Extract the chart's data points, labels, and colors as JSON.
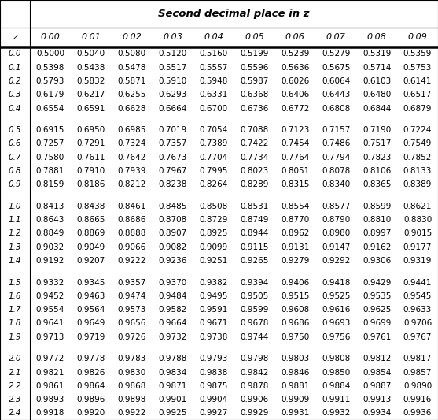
{
  "title": "Second decimal place in z",
  "col_header": [
    "0.00",
    "0.01",
    "0.02",
    "0.03",
    "0.04",
    "0.05",
    "0.06",
    "0.07",
    "0.08",
    "0.09"
  ],
  "z_labels": [
    "0.0",
    "0.1",
    "0.2",
    "0.3",
    "0.4",
    "",
    "0.5",
    "0.6",
    "0.7",
    "0.8",
    "0.9",
    "",
    "1.0",
    "1.1",
    "1.2",
    "1.3",
    "1.4",
    "",
    "1.5",
    "1.6",
    "1.7",
    "1.8",
    "1.9",
    "",
    "2.0",
    "2.1",
    "2.2",
    "2.3",
    "2.4"
  ],
  "table_data": [
    [
      "0.5000",
      "0.5040",
      "0.5080",
      "0.5120",
      "0.5160",
      "0.5199",
      "0.5239",
      "0.5279",
      "0.5319",
      "0.5359"
    ],
    [
      "0.5398",
      "0.5438",
      "0.5478",
      "0.5517",
      "0.5557",
      "0.5596",
      "0.5636",
      "0.5675",
      "0.5714",
      "0.5753"
    ],
    [
      "0.5793",
      "0.5832",
      "0.5871",
      "0.5910",
      "0.5948",
      "0.5987",
      "0.6026",
      "0.6064",
      "0.6103",
      "0.6141"
    ],
    [
      "0.6179",
      "0.6217",
      "0.6255",
      "0.6293",
      "0.6331",
      "0.6368",
      "0.6406",
      "0.6443",
      "0.6480",
      "0.6517"
    ],
    [
      "0.6554",
      "0.6591",
      "0.6628",
      "0.6664",
      "0.6700",
      "0.6736",
      "0.6772",
      "0.6808",
      "0.6844",
      "0.6879"
    ],
    null,
    [
      "0.6915",
      "0.6950",
      "0.6985",
      "0.7019",
      "0.7054",
      "0.7088",
      "0.7123",
      "0.7157",
      "0.7190",
      "0.7224"
    ],
    [
      "0.7257",
      "0.7291",
      "0.7324",
      "0.7357",
      "0.7389",
      "0.7422",
      "0.7454",
      "0.7486",
      "0.7517",
      "0.7549"
    ],
    [
      "0.7580",
      "0.7611",
      "0.7642",
      "0.7673",
      "0.7704",
      "0.7734",
      "0.7764",
      "0.7794",
      "0.7823",
      "0.7852"
    ],
    [
      "0.7881",
      "0.7910",
      "0.7939",
      "0.7967",
      "0.7995",
      "0.8023",
      "0.8051",
      "0.8078",
      "0.8106",
      "0.8133"
    ],
    [
      "0.8159",
      "0.8186",
      "0.8212",
      "0.8238",
      "0.8264",
      "0.8289",
      "0.8315",
      "0.8340",
      "0.8365",
      "0.8389"
    ],
    null,
    [
      "0.8413",
      "0.8438",
      "0.8461",
      "0.8485",
      "0.8508",
      "0.8531",
      "0.8554",
      "0.8577",
      "0.8599",
      "0.8621"
    ],
    [
      "0.8643",
      "0.8665",
      "0.8686",
      "0.8708",
      "0.8729",
      "0.8749",
      "0.8770",
      "0.8790",
      "0.8810",
      "0.8830"
    ],
    [
      "0.8849",
      "0.8869",
      "0.8888",
      "0.8907",
      "0.8925",
      "0.8944",
      "0.8962",
      "0.8980",
      "0.8997",
      "0.9015"
    ],
    [
      "0.9032",
      "0.9049",
      "0.9066",
      "0.9082",
      "0.9099",
      "0.9115",
      "0.9131",
      "0.9147",
      "0.9162",
      "0.9177"
    ],
    [
      "0.9192",
      "0.9207",
      "0.9222",
      "0.9236",
      "0.9251",
      "0.9265",
      "0.9279",
      "0.9292",
      "0.9306",
      "0.9319"
    ],
    null,
    [
      "0.9332",
      "0.9345",
      "0.9357",
      "0.9370",
      "0.9382",
      "0.9394",
      "0.9406",
      "0.9418",
      "0.9429",
      "0.9441"
    ],
    [
      "0.9452",
      "0.9463",
      "0.9474",
      "0.9484",
      "0.9495",
      "0.9505",
      "0.9515",
      "0.9525",
      "0.9535",
      "0.9545"
    ],
    [
      "0.9554",
      "0.9564",
      "0.9573",
      "0.9582",
      "0.9591",
      "0.9599",
      "0.9608",
      "0.9616",
      "0.9625",
      "0.9633"
    ],
    [
      "0.9641",
      "0.9649",
      "0.9656",
      "0.9664",
      "0.9671",
      "0.9678",
      "0.9686",
      "0.9693",
      "0.9699",
      "0.9706"
    ],
    [
      "0.9713",
      "0.9719",
      "0.9726",
      "0.9732",
      "0.9738",
      "0.9744",
      "0.9750",
      "0.9756",
      "0.9761",
      "0.9767"
    ],
    null,
    [
      "0.9772",
      "0.9778",
      "0.9783",
      "0.9788",
      "0.9793",
      "0.9798",
      "0.9803",
      "0.9808",
      "0.9812",
      "0.9817"
    ],
    [
      "0.9821",
      "0.9826",
      "0.9830",
      "0.9834",
      "0.9838",
      "0.9842",
      "0.9846",
      "0.9850",
      "0.9854",
      "0.9857"
    ],
    [
      "0.9861",
      "0.9864",
      "0.9868",
      "0.9871",
      "0.9875",
      "0.9878",
      "0.9881",
      "0.9884",
      "0.9887",
      "0.9890"
    ],
    [
      "0.9893",
      "0.9896",
      "0.9898",
      "0.9901",
      "0.9904",
      "0.9906",
      "0.9909",
      "0.9911",
      "0.9913",
      "0.9916"
    ],
    [
      "0.9918",
      "0.9920",
      "0.9922",
      "0.9925",
      "0.9927",
      "0.9929",
      "0.9931",
      "0.9932",
      "0.9934",
      "0.9936"
    ]
  ],
  "figsize": [
    5.57,
    5.33
  ],
  "dpi": 100,
  "font_size_data": 7.5,
  "font_size_header": 8.0,
  "font_size_title": 9.5
}
